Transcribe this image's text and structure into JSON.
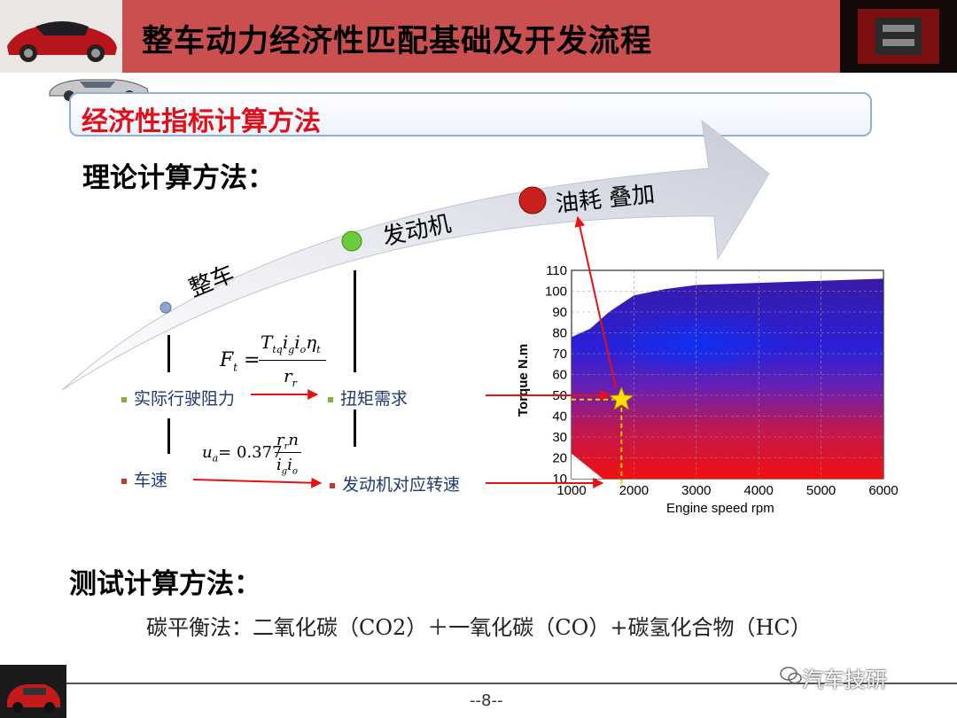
{
  "header": {
    "title": "整车动力经济性匹配基础及开发流程"
  },
  "section": {
    "title": "经济性指标计算方法"
  },
  "theory": {
    "heading": "理论计算方法："
  },
  "arrow": {
    "stages": [
      "整车",
      "发动机",
      "油耗 叠加"
    ]
  },
  "flow": {
    "resistance": "实际行驶阻力",
    "torque": "扭矩需求",
    "speed": "车速",
    "engine_speed": "发动机对应转速"
  },
  "formulas": {
    "force": {
      "lhs": "F",
      "lhs_sub": "t",
      "num": "T",
      "num_sub": "tq",
      "num_rest": "i",
      "g": "g",
      "i0": "i",
      "o": "o",
      "eta": "η",
      "eta_sub": "t",
      "den": "r",
      "den_sub": "r"
    },
    "velocity": {
      "lhs": "u",
      "lhs_sub": "a",
      "coef": "= 0.377",
      "num": "r",
      "num_sub": "r",
      "num_rest": "n",
      "den": "i",
      "den_g": "g",
      "den_i": "i",
      "den_o": "o"
    }
  },
  "chart_data": {
    "type": "heatmap",
    "xlabel": "Engine speed  rpm",
    "ylabel": "Torque  N.m",
    "xticks": [
      1000,
      2000,
      3000,
      4000,
      5000,
      6000
    ],
    "yticks": [
      10,
      20,
      30,
      40,
      50,
      60,
      70,
      80,
      90,
      100,
      110
    ],
    "xlim": [
      1000,
      6000
    ],
    "ylim": [
      10,
      110
    ],
    "operating_point": {
      "x": 1800,
      "y": 48
    }
  },
  "test": {
    "heading": "测试计算方法：",
    "formula": "碳平衡法：二氧化碳（CO2）＋一氧化碳（CO）+碳氢化合物（HC）"
  },
  "footer": {
    "page": "--8--",
    "watermark": "汽车技研"
  },
  "colors": {
    "header": "#c9504f",
    "accent_red": "#e0101a",
    "bullet_green": "#7fb23a",
    "bullet_red": "#c0392b"
  }
}
